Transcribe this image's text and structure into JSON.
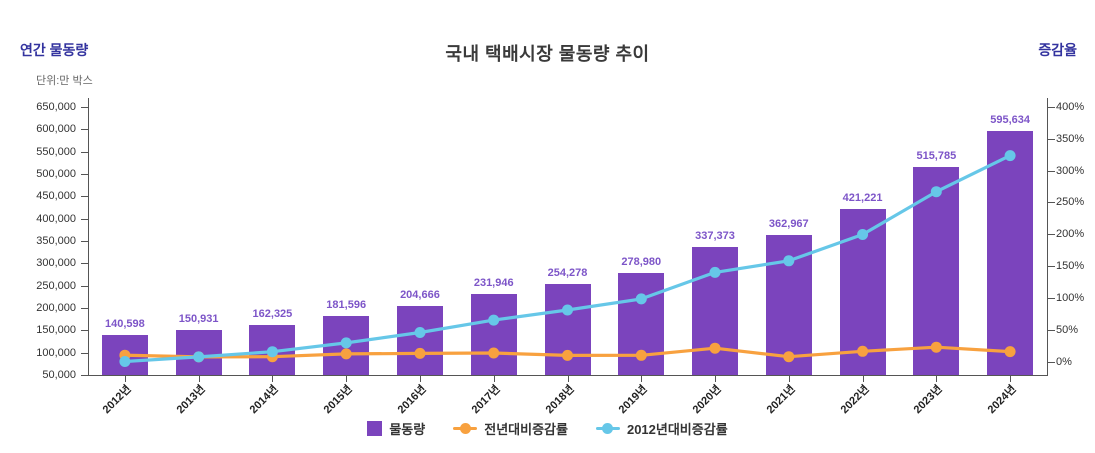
{
  "header": {
    "title": "국내 택배시장 물동량 추이",
    "left_axis_title": "연간 물동량",
    "right_axis_title": "증감율",
    "unit_label": "단위:만 박스"
  },
  "colors": {
    "bar": "#7b44bd",
    "bar_label": "#7d55c8",
    "yoy_line": "#f8a13f",
    "base_line": "#66c7e8",
    "axis_title": "#33339f",
    "title_text": "#3a3a3a",
    "axis_line": "#555555",
    "tick_label": "#333333"
  },
  "chart_data": {
    "type": "bar+line combo",
    "title": "국내 택배시장 물동량 추이",
    "grid": false,
    "legend_position": "bottom",
    "categories": [
      "2012년",
      "2013년",
      "2014년",
      "2015년",
      "2016년",
      "2017년",
      "2018년",
      "2019년",
      "2020년",
      "2021년",
      "2022년",
      "2023년",
      "2024년"
    ],
    "series": [
      {
        "name": "물동량",
        "type": "bar",
        "axis": "left",
        "color": "#7b44bd",
        "data_labels_visible": true,
        "values": [
          140598,
          150931,
          162325,
          181596,
          204666,
          231946,
          254278,
          278980,
          337373,
          362967,
          421221,
          515785,
          595634
        ]
      },
      {
        "name": "전년대비증감률",
        "type": "line",
        "axis": "right",
        "color": "#f8a13f",
        "data_labels_visible": false,
        "values": [
          9.9,
          7.3,
          7.5,
          11.9,
          12.7,
          13.3,
          9.6,
          9.7,
          20.9,
          7.6,
          16.0,
          22.5,
          15.5
        ]
      },
      {
        "name": "2012년대비증감률",
        "type": "line",
        "axis": "right",
        "color": "#66c7e8",
        "data_labels_visible": false,
        "values": [
          0,
          7.3,
          15.4,
          29.2,
          45.6,
          65.0,
          80.9,
          98.4,
          140.0,
          158.2,
          199.6,
          266.8,
          323.6
        ]
      }
    ],
    "left_axis": {
      "title": "연간 물동량",
      "unit": "단위:만 박스",
      "min": 50000,
      "max": 650000,
      "step": 50000,
      "format": "comma"
    },
    "right_axis": {
      "title": "증감율",
      "min": 0,
      "max": 400,
      "step": 50,
      "suffix": "%"
    }
  }
}
